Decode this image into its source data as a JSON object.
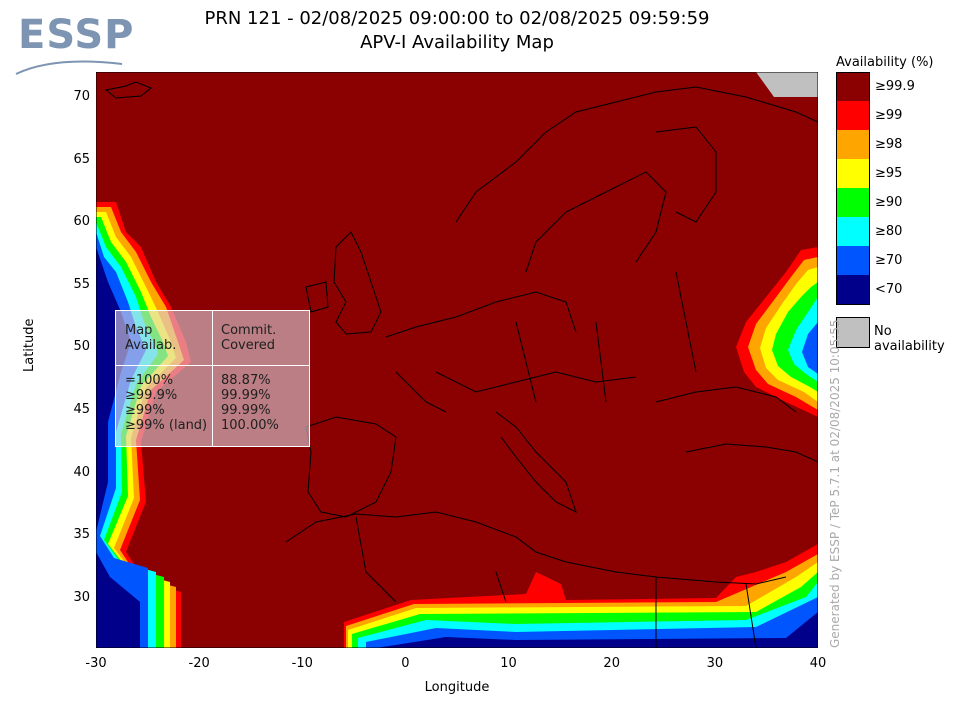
{
  "logo": {
    "text": "ESSP"
  },
  "title": {
    "line1": "PRN 121 - 02/08/2025 09:00:00 to 02/08/2025 09:59:59",
    "line2": "APV-I Availability Map"
  },
  "axes": {
    "xlabel": "Longitude",
    "ylabel": "Latitude",
    "xticks": [
      "-30",
      "-20",
      "-10",
      "0",
      "10",
      "20",
      "30",
      "40"
    ],
    "yticks": [
      "70",
      "65",
      "60",
      "55",
      "50",
      "45",
      "40",
      "35",
      "30"
    ]
  },
  "legend": {
    "title": "Availability (%)",
    "entries": [
      {
        "label": "≥99.9",
        "color": "#8b0000"
      },
      {
        "label": "≥99",
        "color": "#ff0000"
      },
      {
        "label": "≥98",
        "color": "#ffa500"
      },
      {
        "label": "≥95",
        "color": "#ffff00"
      },
      {
        "label": "≥90",
        "color": "#00ff00"
      },
      {
        "label": "≥80",
        "color": "#00ffff"
      },
      {
        "label": "≥70",
        "color": "#0055ff"
      },
      {
        "label": "<70",
        "color": "#00008b"
      }
    ],
    "no_availability": {
      "label": "No availability",
      "color": "#c0c0c0"
    }
  },
  "stats": {
    "header_left": "Map\nAvailab.",
    "header_right": "Commit.\nCovered",
    "rows_left": "=100%\n≥99.9%\n≥99%\n≥99% (land)",
    "rows_right": "88.87%\n99.99%\n99.99%\n100.00%"
  },
  "watermark": "Generated by ESSP / TeP 5.7.1 at 02/08/2025 10:05:55",
  "map": {
    "lon_range": [
      -30,
      40
    ],
    "lat_range": [
      26,
      72
    ],
    "background_color": "#8b0000"
  }
}
